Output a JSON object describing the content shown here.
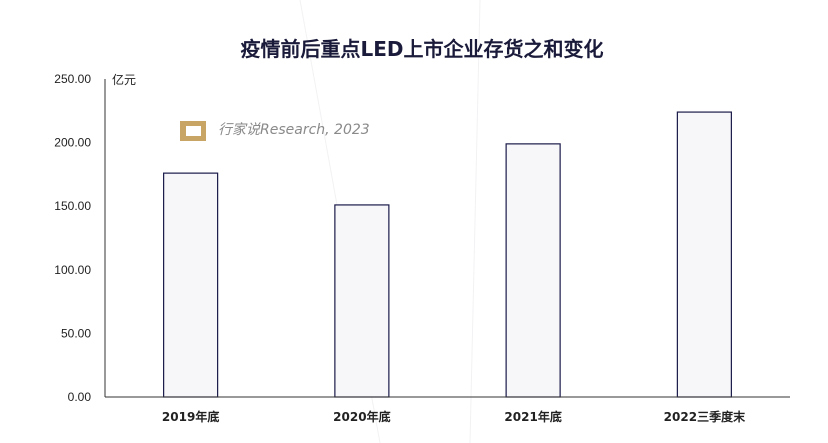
{
  "chart_data": {
    "type": "bar",
    "title": "疫情前后重点LED上市企业存货之和变化",
    "unit_label": "亿元",
    "categories": [
      "2019年底",
      "2020年底",
      "2021年底",
      "2022三季度末"
    ],
    "values": [
      176,
      151,
      199,
      224
    ],
    "ylim": [
      0,
      250
    ],
    "yticks": [
      "0.00",
      "50.00",
      "100.00",
      "150.00",
      "200.00",
      "250.00"
    ],
    "grid": false,
    "bar_fill": "#f7f7f9",
    "bar_stroke": "#1a1a4a"
  },
  "watermark": {
    "text": "行家说Research, 2023",
    "logo_color": "#c8a465"
  }
}
